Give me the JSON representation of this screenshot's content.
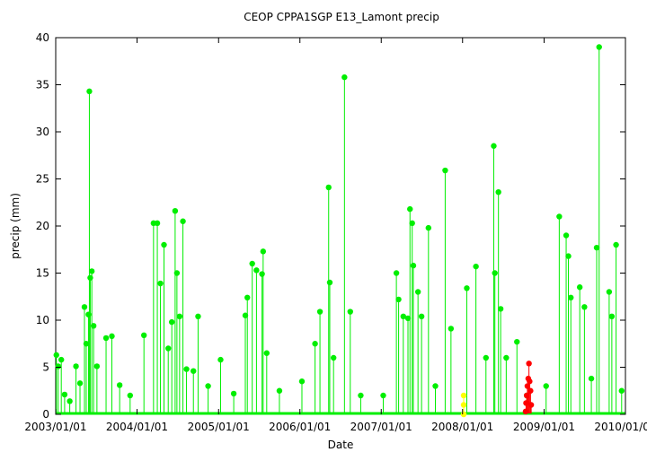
{
  "chart_data": {
    "type": "line",
    "title": "CEOP CPPA1SGP E13_Lamont  precip",
    "xlabel": "Date",
    "ylabel": "precip (mm)",
    "ylim": [
      0,
      40
    ],
    "yticks": [
      0,
      5,
      10,
      15,
      20,
      25,
      30,
      35,
      40
    ],
    "xlim": [
      "2003/01/01",
      "2010/01/01"
    ],
    "xticks": [
      "2003/01/01",
      "2004/01/01",
      "2005/01/01",
      "2006/01/01",
      "2007/01/01",
      "2008/01/01",
      "2009/01/01",
      "2010/01/01"
    ],
    "grid": false,
    "legend": "none",
    "colors": {
      "main": "#00ee00",
      "flag_yellow": "#ffff00",
      "flag_red": "#ff0000",
      "frame": "#000000"
    },
    "series": [
      {
        "color": "#00ee00",
        "points": [
          [
            "2003/01/04",
            6.3
          ],
          [
            "2003/01/12",
            5.1
          ],
          [
            "2003/01/26",
            5.8
          ],
          [
            "2003/02/10",
            2.1
          ],
          [
            "2003/03/05",
            1.4
          ],
          [
            "2003/04/02",
            5.1
          ],
          [
            "2003/04/20",
            3.3
          ],
          [
            "2003/05/10",
            11.4
          ],
          [
            "2003/05/18",
            7.5
          ],
          [
            "2003/05/28",
            10.6
          ],
          [
            "2003/06/01",
            34.3
          ],
          [
            "2003/06/05",
            14.5
          ],
          [
            "2003/06/12",
            15.2
          ],
          [
            "2003/06/20",
            9.4
          ],
          [
            "2003/07/05",
            5.1
          ],
          [
            "2003/08/15",
            8.1
          ],
          [
            "2003/09/10",
            8.3
          ],
          [
            "2003/10/15",
            3.1
          ],
          [
            "2003/12/01",
            2.0
          ],
          [
            "2004/02/01",
            8.4
          ],
          [
            "2004/03/15",
            20.3
          ],
          [
            "2004/04/01",
            20.3
          ],
          [
            "2004/04/15",
            13.9
          ],
          [
            "2004/05/01",
            18.0
          ],
          [
            "2004/05/20",
            7.0
          ],
          [
            "2004/06/05",
            9.8
          ],
          [
            "2004/06/20",
            21.6
          ],
          [
            "2004/06/28",
            15.0
          ],
          [
            "2004/07/10",
            10.4
          ],
          [
            "2004/07/25",
            20.5
          ],
          [
            "2004/08/10",
            4.8
          ],
          [
            "2004/09/10",
            4.6
          ],
          [
            "2004/10/01",
            10.4
          ],
          [
            "2004/11/15",
            3.0
          ],
          [
            "2005/01/10",
            5.8
          ],
          [
            "2005/03/10",
            2.2
          ],
          [
            "2005/05/01",
            10.5
          ],
          [
            "2005/05/10",
            12.4
          ],
          [
            "2005/06/01",
            16.0
          ],
          [
            "2005/06/20",
            15.3
          ],
          [
            "2005/07/15",
            14.9
          ],
          [
            "2005/07/20",
            17.3
          ],
          [
            "2005/08/05",
            6.5
          ],
          [
            "2005/10/01",
            2.5
          ],
          [
            "2006/01/10",
            3.5
          ],
          [
            "2006/03/10",
            7.5
          ],
          [
            "2006/04/01",
            10.9
          ],
          [
            "2006/05/10",
            24.1
          ],
          [
            "2006/05/15",
            14.0
          ],
          [
            "2006/06/01",
            6.0
          ],
          [
            "2006/07/20",
            35.8
          ],
          [
            "2006/08/15",
            10.9
          ],
          [
            "2006/10/01",
            2.0
          ],
          [
            "2007/01/10",
            2.0
          ],
          [
            "2007/03/10",
            15.0
          ],
          [
            "2007/03/20",
            12.2
          ],
          [
            "2007/04/10",
            10.4
          ],
          [
            "2007/05/01",
            10.2
          ],
          [
            "2007/05/10",
            21.8
          ],
          [
            "2007/05/20",
            20.3
          ],
          [
            "2007/05/25",
            15.8
          ],
          [
            "2007/06/15",
            13.0
          ],
          [
            "2007/07/01",
            10.4
          ],
          [
            "2007/08/01",
            19.8
          ],
          [
            "2007/09/01",
            3.0
          ],
          [
            "2007/10/15",
            25.9
          ],
          [
            "2007/11/10",
            9.1
          ],
          [
            "2008/01/20",
            13.4
          ],
          [
            "2008/03/01",
            15.7
          ],
          [
            "2008/04/15",
            6.0
          ],
          [
            "2008/05/20",
            28.5
          ],
          [
            "2008/05/25",
            15.0
          ],
          [
            "2008/06/10",
            23.6
          ],
          [
            "2008/06/20",
            11.2
          ],
          [
            "2008/07/15",
            6.0
          ],
          [
            "2008/09/01",
            7.7
          ],
          [
            "2008/10/15",
            2.0
          ],
          [
            "2009/01/10",
            3.0
          ],
          [
            "2009/03/10",
            21.0
          ],
          [
            "2009/04/10",
            19.0
          ],
          [
            "2009/04/20",
            16.8
          ],
          [
            "2009/05/01",
            12.4
          ],
          [
            "2009/06/10",
            13.5
          ],
          [
            "2009/07/01",
            11.4
          ],
          [
            "2009/08/01",
            3.8
          ],
          [
            "2009/08/25",
            17.7
          ],
          [
            "2009/09/05",
            39.0
          ],
          [
            "2009/10/20",
            13.0
          ],
          [
            "2009/11/01",
            10.4
          ],
          [
            "2009/11/20",
            18.0
          ],
          [
            "2009/12/15",
            2.5
          ]
        ]
      },
      {
        "color": "#ffff00",
        "points": [
          [
            "2008/01/06",
            0.0
          ],
          [
            "2008/01/06",
            1.0
          ],
          [
            "2008/01/06",
            2.0
          ]
        ]
      },
      {
        "color": "#ff0000",
        "points": [
          [
            "2008/10/10",
            0.3
          ],
          [
            "2008/10/12",
            1.2
          ],
          [
            "2008/10/15",
            2.0
          ],
          [
            "2008/10/18",
            3.0
          ],
          [
            "2008/10/22",
            3.8
          ],
          [
            "2008/10/25",
            5.4
          ],
          [
            "2008/10/28",
            3.5
          ],
          [
            "2008/11/01",
            2.5
          ],
          [
            "2008/11/04",
            1.0
          ]
        ]
      }
    ]
  }
}
